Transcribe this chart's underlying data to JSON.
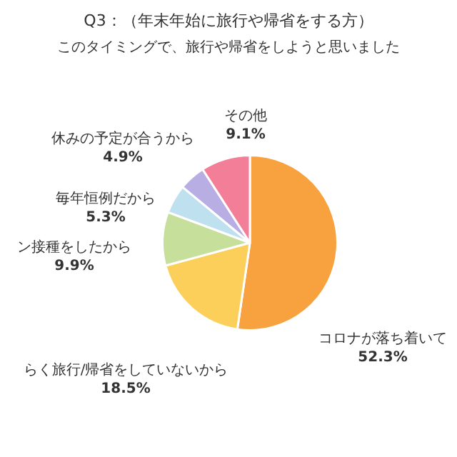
{
  "chart_data": {
    "type": "pie",
    "title": "Q3：（年末年始に旅行や帰省をする方）",
    "subtitle": "このタイミングで、旅行や帰省をしようと思いました",
    "categories": [
      "コロナが落ち着いて",
      "らく旅行/帰省をしていないから",
      "ン接種をしたから",
      "毎年恒例だから",
      "休みの予定が合うから",
      "その他"
    ],
    "values": [
      52.3,
      18.5,
      9.9,
      5.3,
      4.9,
      9.1
    ],
    "value_labels": [
      "52.3%",
      "18.5%",
      "9.9%",
      "5.3%",
      "4.9%",
      "9.1%"
    ],
    "colors": [
      "#f7a23e",
      "#fbcf5a",
      "#c6df9a",
      "#bfe0ee",
      "#b9aee3",
      "#f27f97"
    ],
    "legend": false
  }
}
